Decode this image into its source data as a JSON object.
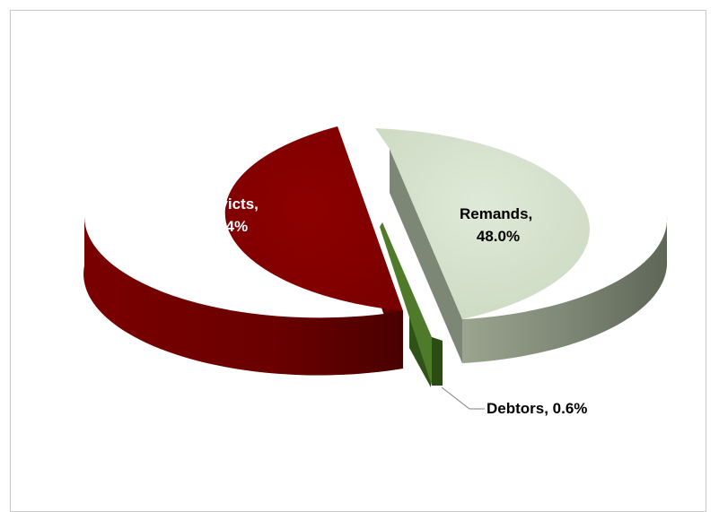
{
  "chart_data": {
    "type": "pie",
    "style": "3d-exploded",
    "slices": [
      {
        "name": "Convicts",
        "value": 51.4,
        "label_lines": [
          "Convicts,",
          "51.4%"
        ],
        "color": "#8b0000",
        "side_color": "#6a0000",
        "label_color": "#ffffff"
      },
      {
        "name": "Remands",
        "value": 48.0,
        "label_lines": [
          "Remands,",
          "48.0%"
        ],
        "color": "#d6e3cd",
        "side_color": "#7e8876",
        "label_color": "#000000"
      },
      {
        "name": "Debtors",
        "value": 0.6,
        "label_lines": [
          "Debtors, 0.6%"
        ],
        "color": "#4f7a2a",
        "side_color": "#2f5316",
        "label_color": "#000000"
      }
    ],
    "legend": "none"
  }
}
